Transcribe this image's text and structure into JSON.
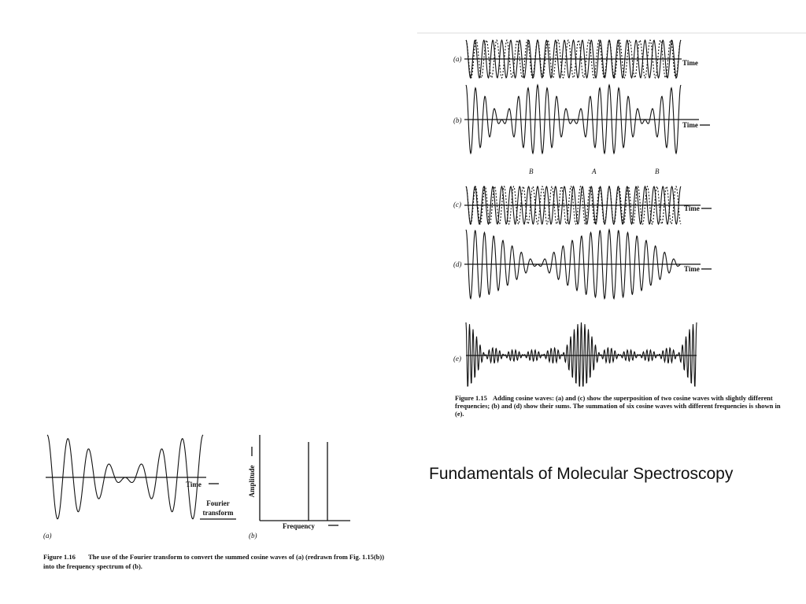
{
  "title": "Fundamentals of Molecular Spectroscopy",
  "figure_1_15": {
    "panels": [
      {
        "label": "(a)",
        "axis": "Time"
      },
      {
        "label": "(b)",
        "axis": "Time"
      },
      {
        "label": "(c)",
        "axis": "Time"
      },
      {
        "label": "(d)",
        "axis": "Time"
      },
      {
        "label": "(e)"
      }
    ],
    "beat_labels": [
      "B",
      "A",
      "B"
    ],
    "caption": {
      "number": "Figure 1.15",
      "lines": [
        "Adding cosine waves: (a) and (c) show the superposition of two cosine waves with slightly different",
        "frequencies; (b) and (d) show their sums. The summation of six cosine waves with different frequencies is shown in",
        "(e)."
      ]
    }
  },
  "figure_1_16": {
    "panel_a": {
      "label": "(a)",
      "axis": "Time"
    },
    "transform_label": [
      "Fourier",
      "transform"
    ],
    "panel_b": {
      "label": "(b)",
      "y_axis": "Amplitude",
      "x_axis": "Frequency"
    },
    "caption": {
      "number": "Figure 1.16",
      "lines": [
        "The use of the Fourier transform to convert the summed cosine waves of (a) (redrawn from Fig. 1.15(b))",
        "into the frequency spectrum of (b)."
      ]
    }
  }
}
